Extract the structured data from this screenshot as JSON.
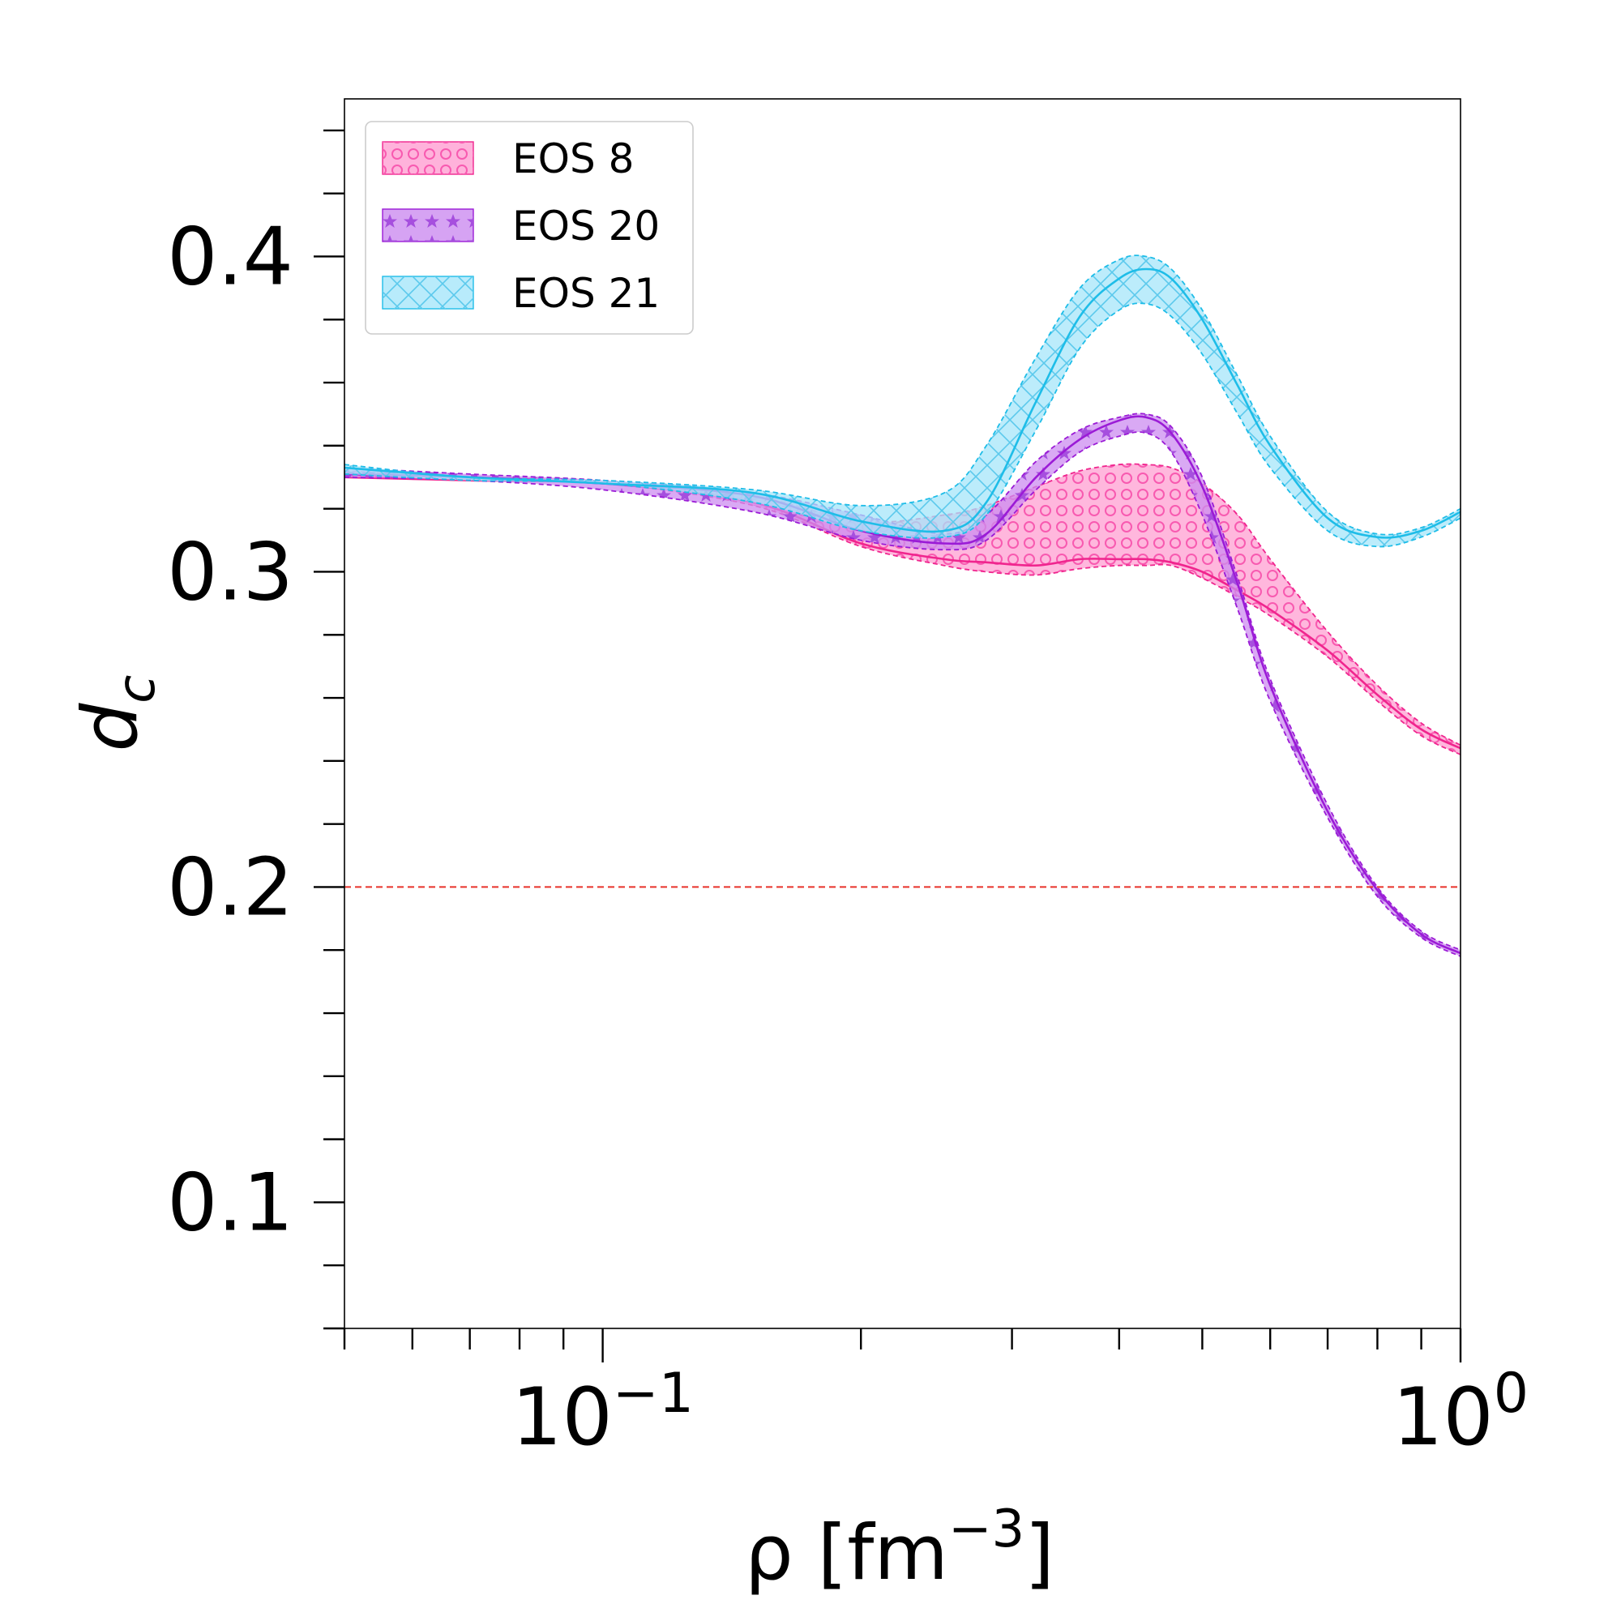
{
  "chart_data": {
    "type": "area",
    "title": "",
    "xlabel": "ρ [fm",
    "xlabel_exponent": "−3",
    "xlabel_close": "]",
    "ylabel": "d",
    "ylabel_subscript": "c",
    "xscale": "log",
    "xlim": [
      0.05,
      1.0
    ],
    "ylim": [
      0.06,
      0.45
    ],
    "x_major_ticks": [
      {
        "value": 0.1,
        "base": "10",
        "exp": "−1"
      },
      {
        "value": 1.0,
        "base": "10",
        "exp": "0"
      }
    ],
    "y_major_ticks": [
      {
        "value": 0.1,
        "label": "0.1"
      },
      {
        "value": 0.2,
        "label": "0.2"
      },
      {
        "value": 0.3,
        "label": "0.3"
      },
      {
        "value": 0.4,
        "label": "0.4"
      }
    ],
    "reference_line": {
      "y": 0.2,
      "color": "#e8322a",
      "style": "dashed"
    },
    "legend_position": "top-left",
    "x": [
      0.05,
      0.07,
      0.1,
      0.15,
      0.2,
      0.25,
      0.28,
      0.32,
      0.36,
      0.4,
      0.43,
      0.46,
      0.5,
      0.55,
      0.6,
      0.7,
      0.8,
      0.9,
      1.0
    ],
    "series": [
      {
        "name": "EOS 8",
        "color": "#f0258e",
        "fill": "#ff9fd2",
        "pattern": "circles",
        "upper": [
          0.332,
          0.33,
          0.329,
          0.324,
          0.316,
          0.318,
          0.321,
          0.327,
          0.332,
          0.334,
          0.334,
          0.333,
          0.328,
          0.318,
          0.304,
          0.281,
          0.264,
          0.252,
          0.245
        ],
        "lower": [
          0.33,
          0.329,
          0.328,
          0.321,
          0.308,
          0.302,
          0.3,
          0.299,
          0.301,
          0.302,
          0.302,
          0.302,
          0.298,
          0.292,
          0.286,
          0.273,
          0.259,
          0.248,
          0.242
        ],
        "center": [
          0.33,
          0.329,
          0.328,
          0.322,
          0.309,
          0.304,
          0.303,
          0.302,
          0.304,
          0.304,
          0.304,
          0.303,
          0.3,
          0.294,
          0.288,
          0.275,
          0.261,
          0.25,
          0.244
        ]
      },
      {
        "name": "EOS 20",
        "color": "#9b1bd6",
        "fill": "#cc8cf0",
        "pattern": "stars",
        "upper": [
          0.333,
          0.331,
          0.329,
          0.325,
          0.318,
          0.312,
          0.318,
          0.335,
          0.345,
          0.349,
          0.35,
          0.346,
          0.33,
          0.298,
          0.266,
          0.226,
          0.2,
          0.186,
          0.18
        ],
        "lower": [
          0.33,
          0.329,
          0.326,
          0.319,
          0.31,
          0.307,
          0.31,
          0.326,
          0.338,
          0.343,
          0.344,
          0.338,
          0.318,
          0.288,
          0.259,
          0.222,
          0.197,
          0.184,
          0.178
        ],
        "center": [
          0.331,
          0.33,
          0.328,
          0.324,
          0.313,
          0.309,
          0.312,
          0.33,
          0.342,
          0.348,
          0.349,
          0.344,
          0.327,
          0.296,
          0.264,
          0.224,
          0.199,
          0.185,
          0.179
        ]
      },
      {
        "name": "EOS 21",
        "color": "#1ebde8",
        "fill": "#a6e6fa",
        "pattern": "crosshatch",
        "upper": [
          0.334,
          0.33,
          0.329,
          0.326,
          0.321,
          0.325,
          0.34,
          0.368,
          0.39,
          0.399,
          0.4,
          0.396,
          0.383,
          0.362,
          0.343,
          0.319,
          0.312,
          0.314,
          0.32
        ],
        "lower": [
          0.331,
          0.329,
          0.328,
          0.322,
          0.313,
          0.311,
          0.318,
          0.345,
          0.371,
          0.383,
          0.385,
          0.381,
          0.369,
          0.35,
          0.333,
          0.313,
          0.308,
          0.311,
          0.317
        ],
        "center": [
          0.333,
          0.33,
          0.328,
          0.325,
          0.316,
          0.313,
          0.322,
          0.354,
          0.381,
          0.393,
          0.396,
          0.393,
          0.38,
          0.359,
          0.34,
          0.317,
          0.311,
          0.313,
          0.319
        ]
      }
    ]
  }
}
